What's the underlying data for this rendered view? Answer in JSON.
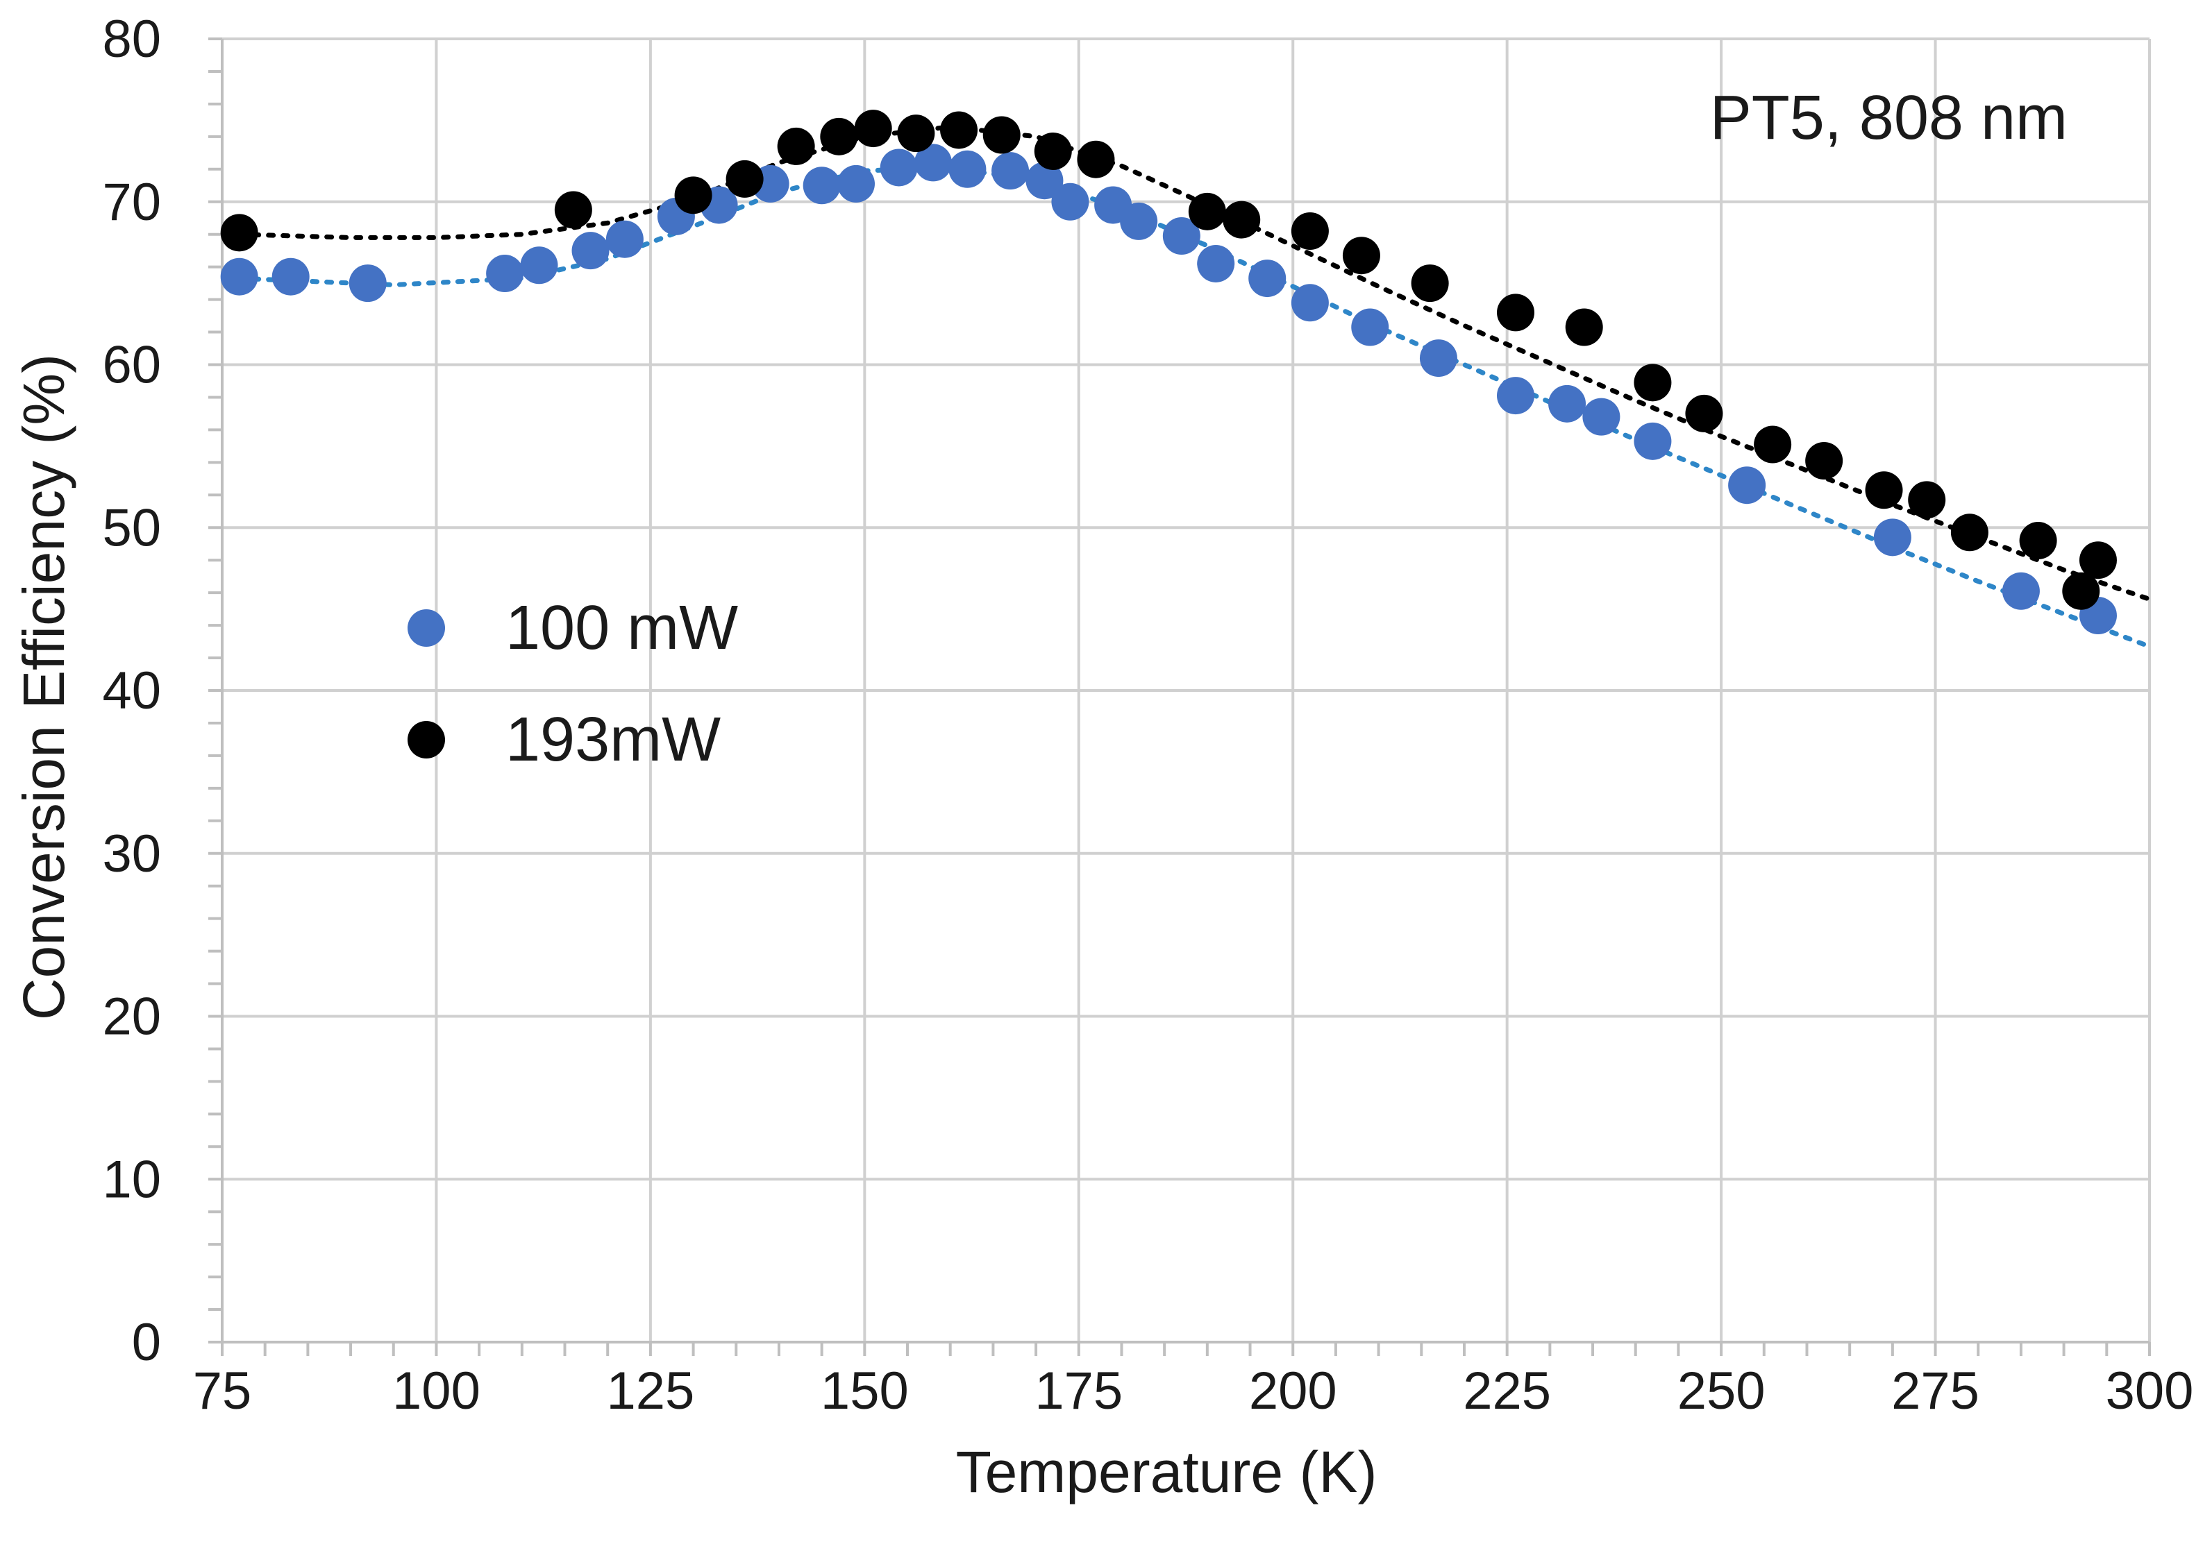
{
  "chart_data": {
    "type": "scatter",
    "title": "",
    "annotation": "PT5, 808 nm",
    "xlabel": "Temperature (K)",
    "ylabel": "Conversion Efficiency (%)",
    "xlim": [
      75,
      300
    ],
    "ylim": [
      0,
      80
    ],
    "xticks": [
      75,
      100,
      125,
      150,
      175,
      200,
      225,
      250,
      275,
      300
    ],
    "yticks": [
      0,
      10,
      20,
      30,
      40,
      50,
      60,
      70,
      80
    ],
    "xtick_labels": [
      "75",
      "100",
      "125",
      "150",
      "175",
      "200",
      "225",
      "250",
      "275",
      "300"
    ],
    "ytick_labels": [
      "0",
      "10",
      "20",
      "30",
      "40",
      "50",
      "60",
      "70",
      "80"
    ],
    "grid": true,
    "legend_position": "left-middle",
    "series": [
      {
        "name": "100 mW",
        "color": "#4472c4",
        "trend_color": "#2e86c8",
        "x": [
          77,
          83,
          92,
          108,
          112,
          118,
          122,
          128,
          133,
          139,
          145,
          149,
          154,
          158,
          162,
          167,
          171,
          174,
          179,
          182,
          187,
          191,
          197,
          202,
          209,
          217,
          226,
          232,
          236,
          242,
          253,
          270,
          285,
          294
        ],
        "y": [
          65.4,
          65.4,
          65.0,
          65.6,
          66.1,
          67.0,
          67.7,
          69.1,
          69.8,
          71.1,
          71.0,
          71.1,
          72.1,
          72.4,
          72.0,
          71.9,
          71.3,
          70.0,
          69.8,
          68.8,
          67.9,
          66.2,
          65.3,
          63.8,
          62.3,
          60.4,
          58.1,
          57.6,
          56.8,
          55.3,
          52.6,
          49.4,
          46.1,
          44.6
        ],
        "trend_x": [
          77,
          95,
          110,
          120,
          130,
          140,
          150,
          160,
          170,
          180,
          190,
          200,
          210,
          220,
          230,
          240,
          250,
          260,
          270,
          280,
          290,
          300
        ],
        "trend_y": [
          65.3,
          64.9,
          65.3,
          66.5,
          68.5,
          70.6,
          71.9,
          72.1,
          71.3,
          69.6,
          67.3,
          64.8,
          62.3,
          60.0,
          57.7,
          55.4,
          53.2,
          51.0,
          48.8,
          46.7,
          44.7,
          42.7
        ]
      },
      {
        "name": "193mW",
        "color": "#000000",
        "trend_color": "#000000",
        "x": [
          77,
          116,
          130,
          136,
          142,
          147,
          151,
          156,
          161,
          166,
          172,
          177,
          190,
          194,
          202,
          208,
          216,
          226,
          234,
          242,
          248,
          256,
          262,
          269,
          274,
          279,
          287,
          292,
          294
        ],
        "y": [
          68.1,
          69.5,
          70.4,
          71.4,
          73.4,
          74.0,
          74.5,
          74.2,
          74.4,
          74.1,
          73.1,
          72.6,
          69.4,
          68.9,
          68.2,
          66.7,
          65.0,
          63.2,
          62.3,
          58.9,
          57.0,
          55.1,
          54.1,
          52.3,
          51.7,
          49.7,
          49.2,
          46.1,
          48.0
        ],
        "trend_x": [
          77,
          90,
          100,
          110,
          120,
          130,
          140,
          150,
          160,
          170,
          180,
          190,
          200,
          210,
          220,
          230,
          240,
          250,
          260,
          270,
          280,
          290,
          300
        ],
        "trend_y": [
          68.0,
          67.8,
          67.8,
          68.0,
          68.7,
          70.2,
          72.4,
          74.0,
          74.6,
          74.0,
          72.2,
          69.8,
          67.3,
          64.8,
          62.4,
          60.1,
          57.8,
          55.6,
          53.5,
          51.4,
          49.4,
          47.4,
          45.6
        ]
      }
    ]
  }
}
